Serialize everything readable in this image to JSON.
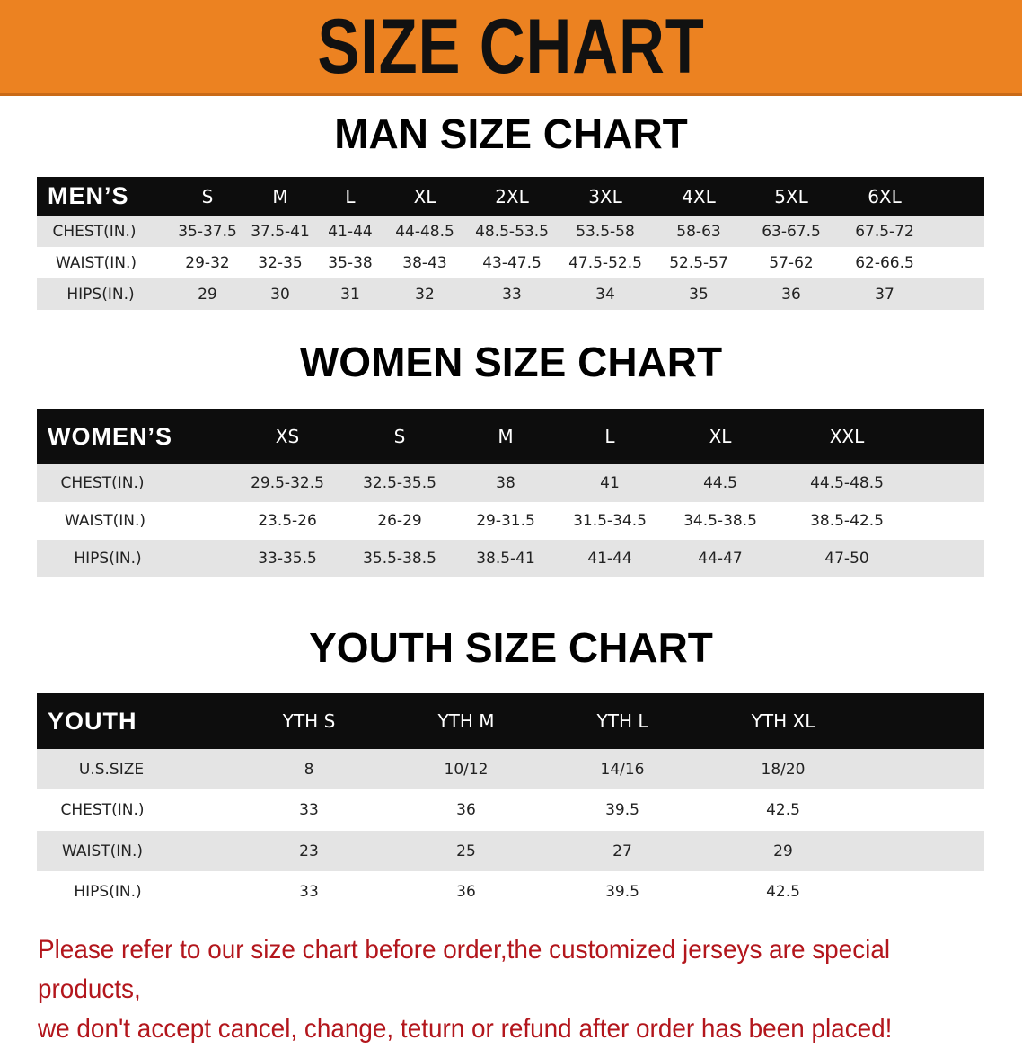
{
  "title": "SIZE CHART",
  "colors": {
    "banner": "#ec8221",
    "header_row": "#0d0d0d",
    "note": "#b3161c"
  },
  "men": {
    "title": "MAN SIZE CHART",
    "header": [
      "MEN’S",
      "S",
      "M",
      "L",
      "XL",
      "2XL",
      "3XL",
      "4XL",
      "5XL",
      "6XL"
    ],
    "rows": [
      [
        "CHEST(IN.)",
        "35-37.5",
        "37.5-41",
        "41-44",
        "44-48.5",
        "48.5-53.5",
        "53.5-58",
        "58-63",
        "63-67.5",
        "67.5-72"
      ],
      [
        "WAIST(IN.)",
        "29-32",
        "32-35",
        "35-38",
        "38-43",
        "43-47.5",
        "47.5-52.5",
        "52.5-57",
        "57-62",
        "62-66.5"
      ],
      [
        "HIPS(IN.)",
        "29",
        "30",
        "31",
        "32",
        "33",
        "34",
        "35",
        "36",
        "37"
      ]
    ]
  },
  "women": {
    "title": "WOMEN SIZE CHART",
    "header": [
      "WOMEN’S",
      "XS",
      "S",
      "M",
      "L",
      "XL",
      "XXL"
    ],
    "rows": [
      [
        "CHEST(IN.)",
        "29.5-32.5",
        "32.5-35.5",
        "38",
        "41",
        "44.5",
        "44.5-48.5"
      ],
      [
        "WAIST(IN.)",
        "23.5-26",
        "26-29",
        "29-31.5",
        "31.5-34.5",
        "34.5-38.5",
        "38.5-42.5"
      ],
      [
        "HIPS(IN.)",
        "33-35.5",
        "35.5-38.5",
        "38.5-41",
        "41-44",
        "44-47",
        "47-50"
      ]
    ]
  },
  "youth": {
    "title": "YOUTH SIZE CHART",
    "header": [
      "YOUTH",
      "YTH S",
      "YTH M",
      "YTH L",
      "YTH XL"
    ],
    "rows": [
      [
        "U.S.SIZE",
        "8",
        "10/12",
        "14/16",
        "18/20"
      ],
      [
        "CHEST(IN.)",
        "33",
        "36",
        "39.5",
        "42.5"
      ],
      [
        "WAIST(IN.)",
        "23",
        "25",
        "27",
        "29"
      ],
      [
        "HIPS(IN.)",
        "33",
        "36",
        "39.5",
        "42.5"
      ]
    ]
  },
  "note": {
    "line1": "Please refer to our size chart before order,the customized jerseys are special products,",
    "line2": "we don't accept cancel, change, teturn or refund after order has been placed!"
  }
}
